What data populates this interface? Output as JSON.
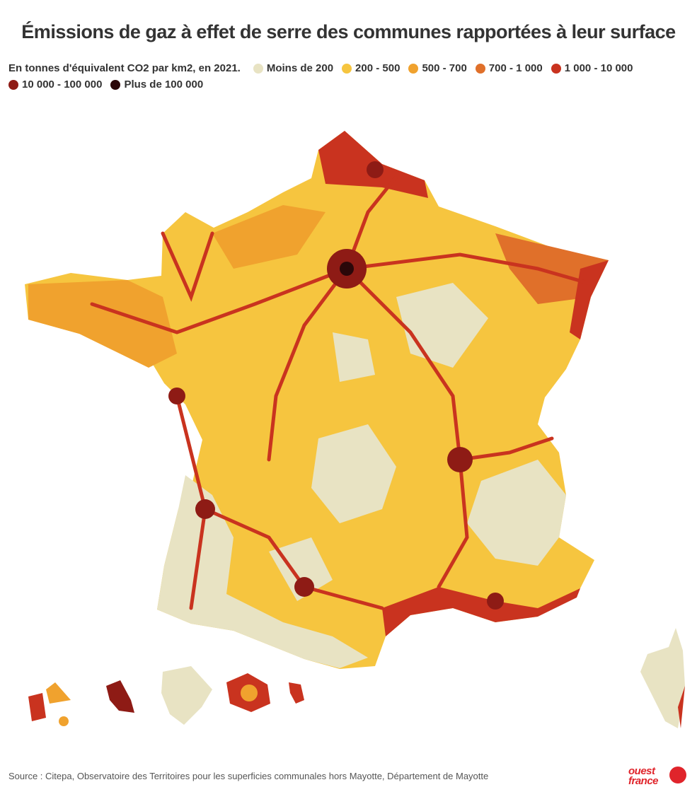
{
  "header": {
    "title": "Émissions de gaz à effet de serre des communes rapportées à leur surface",
    "subtitle": "En tonnes d'équivalent CO2 par km2, en 2021."
  },
  "legend": [
    {
      "label": "Moins de 200",
      "color": "#e8e3c3"
    },
    {
      "label": "200 - 500",
      "color": "#f6c53f"
    },
    {
      "label": "500 - 700",
      "color": "#f0a22e"
    },
    {
      "label": "700 - 1 000",
      "color": "#e0702a"
    },
    {
      "label": "1 000 - 10 000",
      "color": "#c9331f"
    },
    {
      "label": "10 000 - 100 000",
      "color": "#8e1b15"
    },
    {
      "label": "Plus de 100 000",
      "color": "#2b0709"
    }
  ],
  "footer": {
    "source": "Source : Citepa, Observatoire des Territoires pour les superficies communales hors Mayotte, Département de Mayotte",
    "logo": [
      "ouest",
      "france"
    ]
  }
}
